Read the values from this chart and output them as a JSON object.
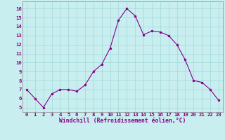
{
  "x": [
    0,
    1,
    2,
    3,
    4,
    5,
    6,
    7,
    8,
    9,
    10,
    11,
    12,
    13,
    14,
    15,
    16,
    17,
    18,
    19,
    20,
    21,
    22,
    23
  ],
  "y": [
    7,
    6,
    5,
    6.5,
    7,
    7,
    6.8,
    7.5,
    9,
    9.8,
    11.6,
    14.7,
    16.0,
    15.2,
    13.1,
    13.5,
    13.4,
    13.0,
    12.0,
    10.3,
    8.0,
    7.8,
    7.0,
    5.8
  ],
  "line_color": "#880088",
  "marker_color": "#880088",
  "bg_color": "#c8eef0",
  "grid_color": "#a0d8d8",
  "xlabel": "Windchill (Refroidissement éolien,°C)",
  "xlabel_color": "#880088",
  "ylim": [
    4.5,
    16.8
  ],
  "xlim": [
    -0.5,
    23.5
  ],
  "yticks": [
    5,
    6,
    7,
    8,
    9,
    10,
    11,
    12,
    13,
    14,
    15,
    16
  ],
  "xticks": [
    0,
    1,
    2,
    3,
    4,
    5,
    6,
    7,
    8,
    9,
    10,
    11,
    12,
    13,
    14,
    15,
    16,
    17,
    18,
    19,
    20,
    21,
    22,
    23
  ]
}
